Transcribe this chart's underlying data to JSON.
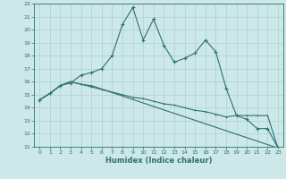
{
  "title": "",
  "xlabel": "Humidex (Indice chaleur)",
  "ylabel": "",
  "xlim": [
    -0.5,
    23.5
  ],
  "ylim": [
    11,
    22
  ],
  "yticks": [
    11,
    12,
    13,
    14,
    15,
    16,
    17,
    18,
    19,
    20,
    21,
    22
  ],
  "xticks": [
    0,
    1,
    2,
    3,
    4,
    5,
    6,
    7,
    8,
    9,
    10,
    11,
    12,
    13,
    14,
    15,
    16,
    17,
    18,
    19,
    20,
    21,
    22,
    23
  ],
  "background_color": "#cde8e8",
  "line_color": "#2d7070",
  "grid_color": "#b0d0d0",
  "line1_x": [
    0,
    1,
    2,
    3,
    4,
    5,
    6,
    7,
    8,
    9,
    10,
    11,
    12,
    13,
    14,
    15,
    16,
    17,
    18,
    19,
    20,
    21,
    22,
    23
  ],
  "line1_y": [
    14.6,
    15.1,
    15.7,
    15.9,
    16.5,
    16.7,
    17.0,
    18.0,
    20.4,
    21.7,
    19.2,
    20.8,
    18.8,
    17.5,
    17.8,
    18.2,
    19.2,
    18.3,
    15.5,
    13.4,
    13.1,
    12.4,
    12.4,
    10.9
  ],
  "line2_x": [
    0,
    1,
    2,
    3,
    4,
    5,
    23
  ],
  "line2_y": [
    14.6,
    15.1,
    15.7,
    16.0,
    15.8,
    15.7,
    10.9
  ],
  "line3_x": [
    0,
    1,
    2,
    3,
    4,
    5,
    6,
    7,
    8,
    9,
    10,
    11,
    12,
    13,
    14,
    15,
    16,
    17,
    18,
    19,
    20,
    21,
    22,
    23
  ],
  "line3_y": [
    14.6,
    15.1,
    15.7,
    16.0,
    15.8,
    15.6,
    15.4,
    15.2,
    15.0,
    14.8,
    14.7,
    14.5,
    14.3,
    14.2,
    14.0,
    13.8,
    13.7,
    13.5,
    13.3,
    13.4,
    13.4,
    13.4,
    13.4,
    10.9
  ]
}
